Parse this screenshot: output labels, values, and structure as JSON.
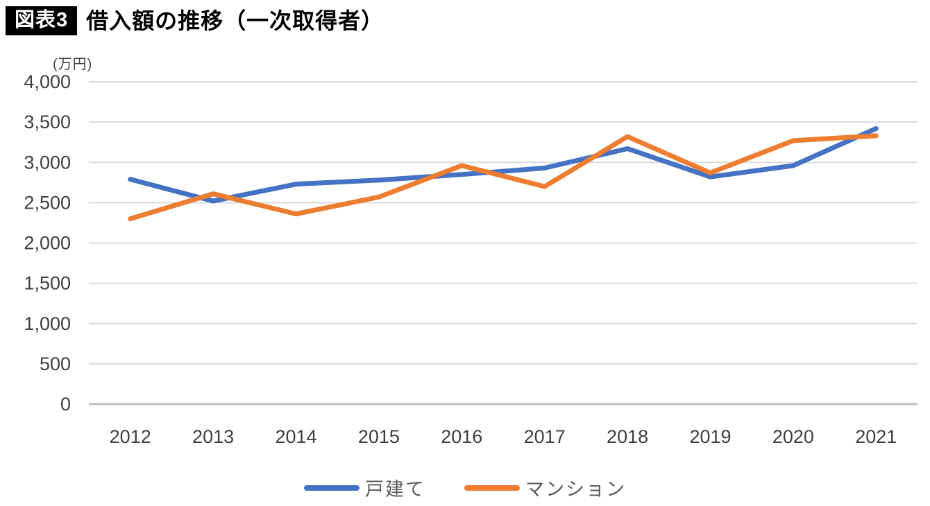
{
  "figure": {
    "badge": "図表3",
    "title": "借入額の推移（一次取得者）",
    "unit_label": "(万円)"
  },
  "chart_data": {
    "type": "line",
    "title": "借入額の推移（一次取得者）",
    "xlabel": "",
    "ylabel": "(万円)",
    "categories": [
      "2012",
      "2013",
      "2014",
      "2015",
      "2016",
      "2017",
      "2018",
      "2019",
      "2020",
      "2021"
    ],
    "series": [
      {
        "name": "戸建て",
        "color": "#4472C4",
        "values": [
          2790,
          2520,
          2730,
          2780,
          2850,
          2930,
          3170,
          2820,
          2960,
          3420
        ]
      },
      {
        "name": "マンション",
        "color": "#ED7D31",
        "values": [
          2300,
          2610,
          2360,
          2570,
          2960,
          2700,
          3320,
          2870,
          3270,
          3330
        ]
      }
    ],
    "ylim": [
      0,
      4000
    ],
    "ytick_interval": 500,
    "grid": "horizontal",
    "legend_position": "bottom"
  },
  "colors": {
    "gridline": "#D9D9D9",
    "axis_line": "#BFBFBF",
    "tick_label": "#3F3F3F",
    "legend_text": "#595959",
    "badge_bg": "#000000",
    "badge_text": "#FFFFFF"
  }
}
